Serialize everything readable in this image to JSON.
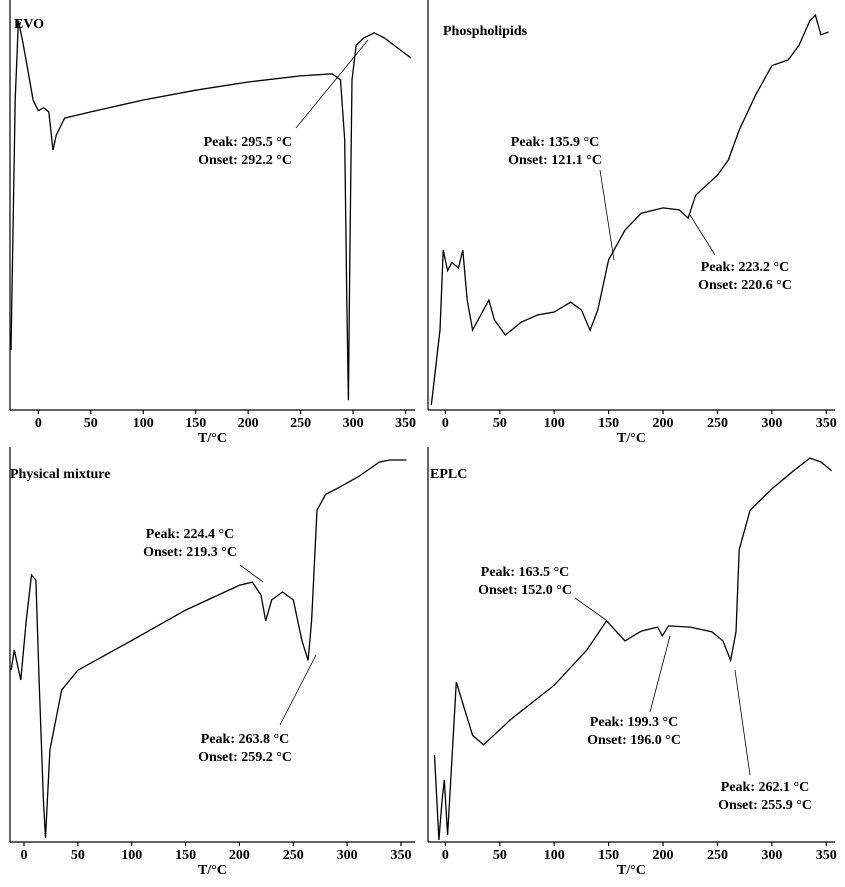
{
  "chart_data": [
    {
      "type": "line",
      "title": "EVO",
      "xlabel": "T/°C",
      "color": "#000000",
      "xlim": [
        -27,
        359
      ],
      "ylim": [
        0,
        100
      ],
      "xticks": [
        0,
        50,
        100,
        150,
        200,
        250,
        300,
        350
      ],
      "x": [
        -26,
        -22,
        -19,
        -15,
        -10,
        -5,
        0,
        5,
        10,
        14,
        17,
        25,
        50,
        100,
        150,
        200,
        250,
        280,
        288,
        292,
        294,
        295.5,
        297,
        299,
        303,
        310,
        320,
        330,
        345,
        355
      ],
      "values": [
        14.6,
        75.6,
        95,
        90,
        83,
        75.6,
        73,
        73.7,
        72.7,
        63.4,
        67,
        71.2,
        72.7,
        75.6,
        78,
        80,
        81.5,
        82,
        80.5,
        65.9,
        26.8,
        2.4,
        39,
        80.5,
        89,
        90.7,
        92,
        90.7,
        87.8,
        85.9
      ],
      "annotations": [
        [
          "Peak: 295.5 °C",
          "Onset: 292.2 °C"
        ]
      ]
    },
    {
      "type": "line",
      "title": "Phospholipids",
      "xlabel": "T/°C",
      "color": "#000000",
      "xlim": [
        -16,
        358
      ],
      "ylim": [
        0,
        100
      ],
      "xticks": [
        0,
        50,
        100,
        150,
        200,
        250,
        300,
        350
      ],
      "x": [
        -13,
        -5,
        -2,
        2,
        6,
        12,
        16,
        20,
        25,
        35,
        40,
        45,
        55,
        70,
        85,
        100,
        115,
        125,
        133,
        140,
        150,
        165,
        180,
        200,
        215,
        223,
        230,
        250,
        260,
        270,
        285,
        300,
        315,
        325,
        335,
        340,
        345,
        352
      ],
      "values": [
        1.2,
        19.5,
        39,
        34,
        36,
        34.6,
        39,
        26.8,
        19.5,
        24.4,
        26.8,
        22,
        18.3,
        21.5,
        23.2,
        23.9,
        26.3,
        24.4,
        19.5,
        24.4,
        36.6,
        43.9,
        48,
        49.3,
        48.8,
        46.8,
        52.4,
        57.3,
        61,
        68.3,
        76.8,
        84,
        85.4,
        89,
        95,
        96.3,
        91.5,
        92.2
      ],
      "annotations": [
        [
          "Peak: 135.9 °C",
          "Onset: 121.1 °C"
        ],
        [
          "Peak: 223.2 °C",
          "Onset: 220.6 °C"
        ]
      ]
    },
    {
      "type": "line",
      "title": "Physical mixture",
      "xlabel": "T/°C",
      "color": "#000000",
      "xlim": [
        -13,
        363
      ],
      "ylim": [
        0,
        100
      ],
      "xticks": [
        0,
        50,
        100,
        150,
        200,
        250,
        300,
        350
      ],
      "x": [
        -12,
        -9,
        -6,
        -3,
        2,
        7,
        11,
        14,
        18,
        20,
        24,
        35,
        50,
        100,
        150,
        200,
        212,
        220,
        224.4,
        230,
        240,
        250,
        258,
        263.8,
        267,
        272,
        280,
        290,
        310,
        330,
        340,
        355
      ],
      "values": [
        43.5,
        48.6,
        44.8,
        41,
        56,
        67.6,
        66.3,
        41,
        10.6,
        1,
        23.3,
        38.5,
        43.5,
        51,
        58.7,
        65,
        65.8,
        62.5,
        56,
        61.3,
        63.3,
        61.3,
        51,
        46,
        56,
        84,
        88,
        89.4,
        92.4,
        96.2,
        96.7,
        96.7
      ],
      "annotations": [
        [
          "Peak: 224.4 °C",
          "Onset: 219.3 °C"
        ],
        [
          "Peak: 263.8 °C",
          "Onset: 259.2 °C"
        ]
      ]
    },
    {
      "type": "line",
      "title": "EPLC",
      "xlabel": "T/°C",
      "color": "#000000",
      "xlim": [
        -16,
        358
      ],
      "ylim": [
        0,
        100
      ],
      "xticks": [
        0,
        50,
        100,
        150,
        200,
        250,
        300,
        350
      ],
      "x": [
        -10,
        -6,
        -3,
        -1,
        2,
        6,
        10,
        15,
        25,
        35,
        60,
        100,
        130,
        148,
        158,
        165,
        180,
        195,
        199.3,
        205,
        225,
        245,
        255,
        262.1,
        267,
        270,
        280,
        300,
        320,
        335,
        345,
        355
      ],
      "values": [
        22,
        0.5,
        10.6,
        15.7,
        1.8,
        20.8,
        40.5,
        36,
        27,
        24.6,
        31,
        39.7,
        48.6,
        56,
        53,
        50.9,
        53.4,
        54.4,
        52.2,
        54.7,
        54.4,
        53.2,
        50.9,
        46,
        53.2,
        74,
        84,
        89.4,
        94,
        97.2,
        96.2,
        94
      ],
      "annotations": [
        [
          "Peak: 163.5 °C",
          "Onset: 152.0 °C"
        ],
        [
          "Peak: 199.3 °C",
          "Onset: 196.0 °C"
        ],
        [
          "Peak: 262.1 °C",
          "Onset: 255.9 °C"
        ]
      ]
    }
  ]
}
